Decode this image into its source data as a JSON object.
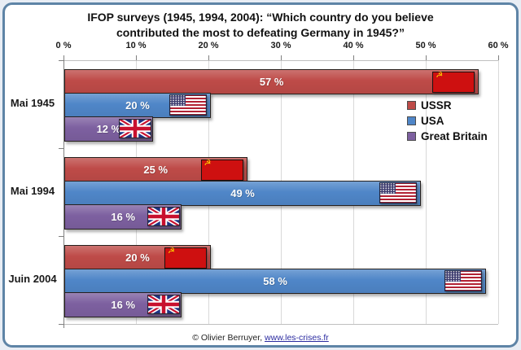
{
  "title": {
    "line1": "IFOP surveys (1945, 1994, 2004): “Which country do you believe",
    "line2": "contributed the most to defeating Germany in 1945?”"
  },
  "chart_data": {
    "type": "bar",
    "orientation": "horizontal",
    "title": "IFOP surveys (1945, 1994, 2004): “Which country do you believe contributed the most to defeating Germany in 1945?”",
    "x_axis": {
      "ticks": [
        "0 %",
        "10 %",
        "20 %",
        "30 %",
        "40 %",
        "50 %",
        "60 %"
      ],
      "values": [
        0,
        10,
        20,
        30,
        40,
        50,
        60
      ],
      "range": [
        0,
        60
      ],
      "grid": true
    },
    "categories": [
      "Mai 1945",
      "Mai 1994",
      "Juin 2004"
    ],
    "series": [
      {
        "name": "USSR",
        "color": "#BE4B48",
        "flag": "ussr-flag",
        "values": [
          57,
          25,
          20
        ]
      },
      {
        "name": "USA",
        "color": "#4F86C8",
        "flag": "usa-flag",
        "values": [
          20,
          49,
          58
        ]
      },
      {
        "name": "Great Britain",
        "color": "#7D60A0",
        "flag": "uk-flag",
        "values": [
          12,
          16,
          16
        ]
      }
    ],
    "value_label_suffix": " %",
    "legend_position": "right-top"
  },
  "legend": {
    "items": [
      {
        "label": "USSR",
        "color": "#BE4B48"
      },
      {
        "label": "USA",
        "color": "#4F86C8"
      },
      {
        "label": "Great Britain",
        "color": "#7D60A0"
      }
    ]
  },
  "footer": {
    "copyright": "© Olivier Berruyer, ",
    "link": "www.les-crises.fr"
  },
  "colors": {
    "outer_background": "#E8EDF4",
    "frame_border": "#5E84A6",
    "plot_background": "#FFFFFF",
    "gridline": "#D9D9D9",
    "axis": "#808080",
    "value_label": "#FFFFFF",
    "ussr_flag_red": "#CE1010"
  }
}
